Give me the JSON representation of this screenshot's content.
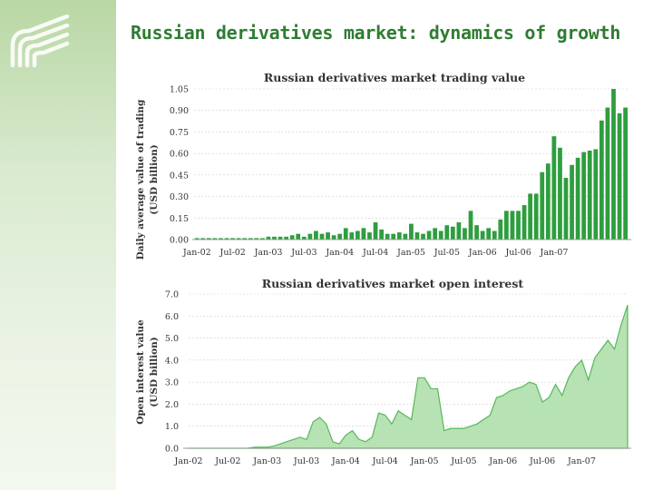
{
  "slide_title": "Russian derivatives market: dynamics of growth",
  "colors": {
    "accent": "#2e7d32",
    "bar": "#2e9e3e",
    "area_fill": "#b7e2b3",
    "area_line": "#56b859"
  },
  "logo_icon": "stylized-s-stripes-logo",
  "chart_data": [
    {
      "type": "bar",
      "title": "Russian derivatives market trading value",
      "ylabel_lines": [
        "Daily average value of trading",
        "(USD billion)"
      ],
      "yticks": [
        "0.00",
        "0.15",
        "0.30",
        "0.45",
        "0.60",
        "0.75",
        "0.90",
        "1.05"
      ],
      "xticks": [
        "Jan-02",
        "Jul-02",
        "Jan-03",
        "Jul-03",
        "Jan-04",
        "Jul-04",
        "Jan-05",
        "Jul-05",
        "Jan-06",
        "Jul-06",
        "Jan-07"
      ],
      "ylim": [
        0,
        1.05
      ],
      "categories_start": "Jan-02",
      "values": [
        0.01,
        0.01,
        0.01,
        0.01,
        0.01,
        0.01,
        0.01,
        0.01,
        0.01,
        0.01,
        0.01,
        0.01,
        0.02,
        0.02,
        0.02,
        0.02,
        0.03,
        0.04,
        0.02,
        0.04,
        0.06,
        0.04,
        0.05,
        0.03,
        0.04,
        0.08,
        0.05,
        0.06,
        0.08,
        0.05,
        0.12,
        0.07,
        0.04,
        0.04,
        0.05,
        0.04,
        0.11,
        0.05,
        0.04,
        0.06,
        0.08,
        0.06,
        0.1,
        0.09,
        0.12,
        0.08,
        0.2,
        0.1,
        0.06,
        0.08,
        0.06,
        0.14,
        0.2,
        0.2,
        0.2,
        0.24,
        0.32,
        0.32,
        0.47,
        0.53,
        0.72,
        0.64,
        0.43,
        0.52,
        0.57,
        0.61,
        0.62,
        0.63,
        0.83,
        0.92,
        1.05,
        0.88,
        0.92
      ]
    },
    {
      "type": "area",
      "title": "Russian derivatives market open interest",
      "ylabel_lines": [
        "Open interest value",
        "(USD billion)"
      ],
      "yticks": [
        "0.0",
        "1.0",
        "2.0",
        "3.0",
        "4.0",
        "5.0",
        "6.0",
        "7.0"
      ],
      "xticks": [
        "Jan-02",
        "Jul-02",
        "Jan-03",
        "Jul-03",
        "Jan-04",
        "Jul-04",
        "Jan-05",
        "Jul-05",
        "Jan-06",
        "Jul-06",
        "Jan-07"
      ],
      "ylim": [
        0,
        7
      ],
      "values": [
        0.0,
        0.0,
        0.0,
        0.0,
        0.0,
        0.0,
        0.0,
        0.0,
        0.0,
        0.0,
        0.05,
        0.05,
        0.05,
        0.1,
        0.2,
        0.3,
        0.4,
        0.5,
        0.4,
        1.2,
        1.4,
        1.1,
        0.3,
        0.2,
        0.6,
        0.8,
        0.4,
        0.3,
        0.5,
        1.6,
        1.5,
        1.1,
        1.7,
        1.5,
        1.3,
        3.2,
        3.2,
        2.7,
        2.7,
        0.8,
        0.9,
        0.9,
        0.9,
        1.0,
        1.1,
        1.3,
        1.5,
        2.3,
        2.4,
        2.6,
        2.7,
        2.8,
        3.0,
        2.9,
        2.1,
        2.3,
        2.9,
        2.4,
        3.2,
        3.7,
        4.0,
        3.1,
        4.1,
        4.5,
        4.9,
        4.5,
        5.6,
        6.5
      ]
    }
  ]
}
